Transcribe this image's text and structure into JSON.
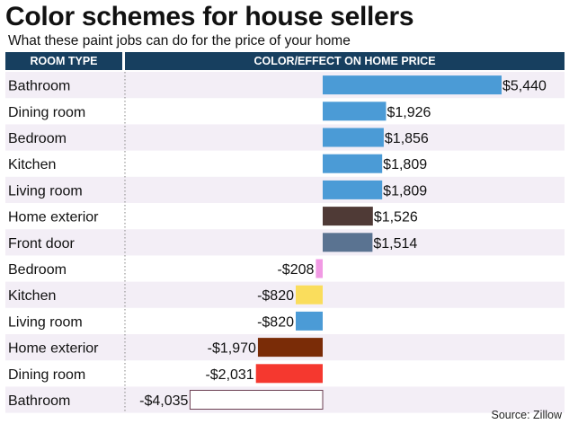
{
  "title": "Color schemes for house sellers",
  "subtitle": "What these paint jobs can do for the price of your home",
  "headers": {
    "room_type": "ROOM TYPE",
    "effect": "COLOR/EFFECT ON HOME PRICE"
  },
  "source": "Source: Zillow",
  "chart_data": {
    "type": "bar",
    "orientation": "horizontal",
    "title": "Color schemes for house sellers",
    "subtitle": "What these paint jobs can do for the price of your home",
    "xlabel": "Color/effect on home price ($)",
    "ylabel": "Room type",
    "categories": [
      "Bathroom",
      "Dining room",
      "Bedroom",
      "Kitchen",
      "Living room",
      "Home exterior",
      "Front door",
      "Bedroom",
      "Kitchen",
      "Living room",
      "Home exterior",
      "Dining room",
      "Bathroom"
    ],
    "values": [
      5440,
      1926,
      1856,
      1809,
      1809,
      1526,
      1514,
      -208,
      -820,
      -820,
      -1970,
      -2031,
      -4035
    ],
    "labels": [
      "$5,440",
      "$1,926",
      "$1,856",
      "$1,809",
      "$1,809",
      "$1,526",
      "$1,514",
      "-$208",
      "-$820",
      "-$820",
      "-$1,970",
      "-$2,031",
      "-$4,035"
    ],
    "colors": [
      "#4b9bd6",
      "#4b9bd6",
      "#4b9bd6",
      "#4b9bd6",
      "#4b9bd6",
      "#4f3a36",
      "#5a7391",
      "#f19ae4",
      "#fadd5c",
      "#4b9bd6",
      "#7a2c07",
      "#f5382f",
      "#ffffff"
    ],
    "xlim": [
      -4035,
      5440
    ],
    "grid": false
  }
}
